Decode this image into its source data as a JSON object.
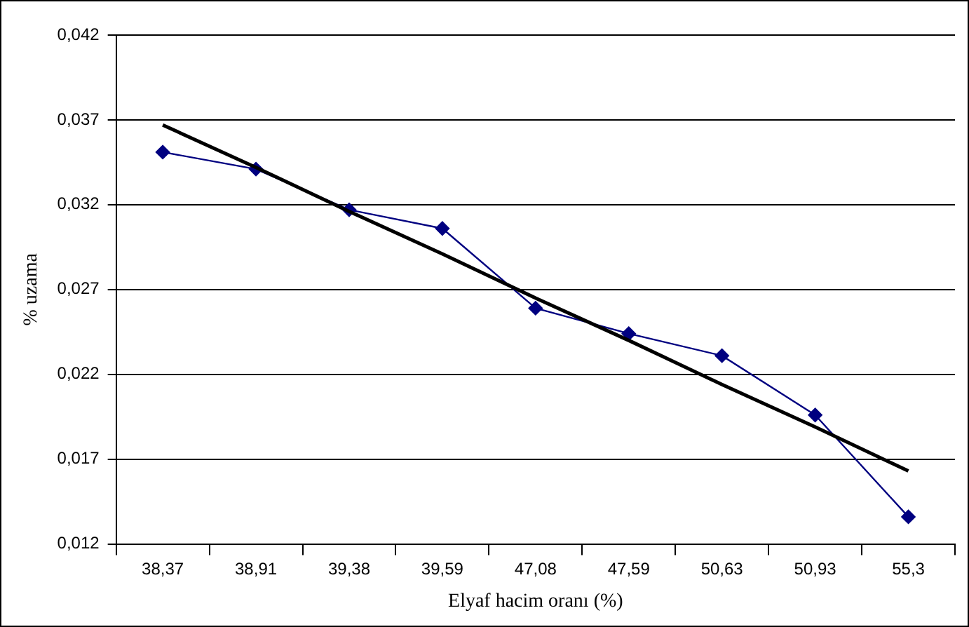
{
  "chart_data": {
    "type": "line",
    "xlabel": "Elyaf hacim oranı (%)",
    "ylabel": "% uzama",
    "categories": [
      "38,37",
      "38,91",
      "39,38",
      "39,59",
      "47,08",
      "47,59",
      "50,63",
      "50,93",
      "55,3"
    ],
    "series": [
      {
        "color": "#000080",
        "values": [
          0.0351,
          0.0341,
          0.0317,
          0.0306,
          0.0259,
          0.0244,
          0.0231,
          0.0196,
          0.0136
        ],
        "marker": "diamond"
      },
      {
        "type": "line",
        "color": "#000000",
        "values": [
          0.0367,
          0.0342,
          0.0316,
          0.0291,
          0.0265,
          0.024,
          0.0214,
          0.0189,
          0.0163
        ],
        "marker": "none"
      }
    ],
    "ylim": [
      0.012,
      0.042
    ],
    "yticks": [
      {
        "value": 0.012,
        "label": "0,012"
      },
      {
        "value": 0.017,
        "label": "0,017"
      },
      {
        "value": 0.022,
        "label": "0,022"
      },
      {
        "value": 0.027,
        "label": "0,027"
      },
      {
        "value": 0.032,
        "label": "0,032"
      },
      {
        "value": 0.037,
        "label": "0,037"
      },
      {
        "value": 0.042,
        "label": "0,042"
      }
    ],
    "grid": "y",
    "legend": false
  }
}
